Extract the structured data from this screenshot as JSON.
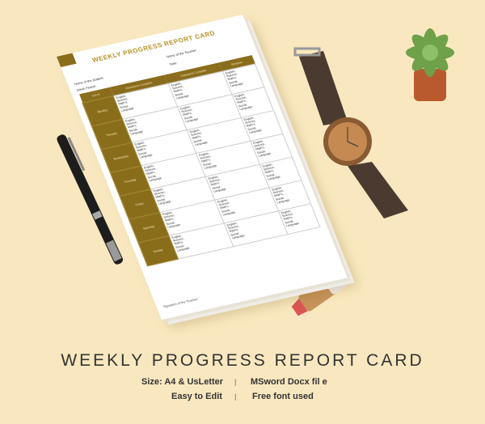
{
  "document": {
    "title": "WEEKLY PROGRESS REPORT CARD",
    "teacher_label": "Name of the Teacher:",
    "date_label": "Date:",
    "student_label": "Name of the student:",
    "week_label": "Week Period:",
    "columns": [
      "DAYS",
      "Homework Complete",
      "Classwork Complete",
      "Behavior"
    ],
    "days": [
      "Monday",
      "Tuesday",
      "Wednesday",
      "Thursday",
      "Friday",
      "Saturday",
      "Sunday"
    ],
    "subjects": [
      "English,",
      "Science,",
      "Math's,",
      "Social,",
      "Language"
    ],
    "signature_label": "Signature of the Teacher:",
    "accent": "#8a6d1b"
  },
  "caption": {
    "title": "WEEKLY PROGRESS REPORT CARD",
    "size": "Size: A4  & UsLetter",
    "format": "MSword  Docx fil e",
    "edit": "Easy to Edit",
    "font": "Free font used",
    "separator": "|"
  }
}
